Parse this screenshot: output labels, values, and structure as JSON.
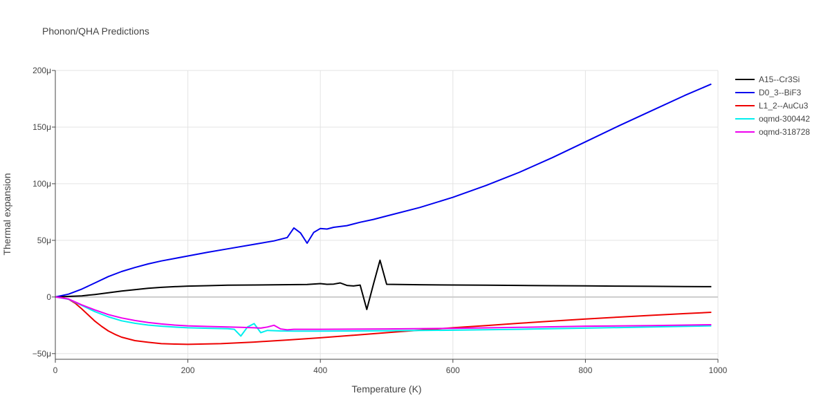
{
  "chart_data": {
    "type": "line",
    "title": "Phonon/QHA Predictions",
    "xlabel": "Temperature (K)",
    "ylabel": "Thermal expansion",
    "xlim": [
      0,
      1000
    ],
    "ylim": [
      -5.5e-05,
      0.0002
    ],
    "x_ticks": [
      0,
      200,
      400,
      600,
      800,
      1000
    ],
    "x_tick_labels": [
      "0",
      "200",
      "400",
      "600",
      "800",
      "1000"
    ],
    "y_ticks": [
      -5e-05,
      0,
      5e-05,
      0.0001,
      0.00015,
      0.0002
    ],
    "y_tick_labels": [
      "−50μ",
      "0",
      "50μ",
      "100μ",
      "150μ",
      "200μ"
    ],
    "grid": true,
    "legend_position": "top-right",
    "series": [
      {
        "name": "A15--Cr3Si",
        "color": "#000000",
        "x": [
          0,
          20,
          40,
          60,
          80,
          100,
          120,
          140,
          160,
          180,
          200,
          230,
          260,
          300,
          340,
          380,
          400,
          410,
          420,
          430,
          440,
          450,
          460,
          470,
          480,
          490,
          500,
          550,
          600,
          650,
          700,
          750,
          800,
          850,
          900,
          950,
          990
        ],
        "y": [
          0,
          5e-07,
          1e-06,
          2.2e-06,
          3.7e-06,
          5.2e-06,
          6.5e-06,
          7.7e-06,
          8.5e-06,
          9.1e-06,
          9.6e-06,
          1e-05,
          1.04e-05,
          1.06e-05,
          1.08e-05,
          1.1e-05,
          1.18e-05,
          1.12e-05,
          1.14e-05,
          1.24e-05,
          1.02e-05,
          9.7e-06,
          1.05e-05,
          -1.1e-05,
          1.1e-05,
          3.25e-05,
          1.12e-05,
          1.08e-05,
          1.06e-05,
          1.04e-05,
          1.02e-05,
          1e-05,
          9.8e-06,
          9.6e-06,
          9.4e-06,
          9.2e-06,
          9.1e-06
        ]
      },
      {
        "name": "D0_3--BiF3",
        "color": "#0000ee",
        "x": [
          0,
          20,
          40,
          60,
          80,
          100,
          120,
          140,
          160,
          180,
          200,
          230,
          260,
          300,
          330,
          350,
          360,
          370,
          380,
          390,
          400,
          410,
          420,
          440,
          460,
          480,
          500,
          550,
          600,
          650,
          700,
          750,
          800,
          850,
          900,
          950,
          990
        ],
        "y": [
          0,
          2.5e-06,
          7e-06,
          1.25e-05,
          1.8e-05,
          2.25e-05,
          2.6e-05,
          2.92e-05,
          3.18e-05,
          3.4e-05,
          3.62e-05,
          3.95e-05,
          4.25e-05,
          4.65e-05,
          4.95e-05,
          5.25e-05,
          6.1e-05,
          5.65e-05,
          4.75e-05,
          5.7e-05,
          6.05e-05,
          6e-05,
          6.15e-05,
          6.3e-05,
          6.6e-05,
          6.85e-05,
          7.15e-05,
          7.9e-05,
          8.8e-05,
          9.85e-05,
          0.00011,
          0.000123,
          0.000137,
          0.000151,
          0.0001645,
          0.000178,
          0.000188
        ]
      },
      {
        "name": "L1_2--AuCu3",
        "color": "#ee0000",
        "x": [
          0,
          10,
          20,
          30,
          40,
          50,
          60,
          70,
          80,
          90,
          100,
          120,
          140,
          160,
          180,
          200,
          250,
          300,
          350,
          400,
          450,
          500,
          550,
          600,
          650,
          700,
          750,
          800,
          850,
          900,
          950,
          990
        ],
        "y": [
          0,
          -5e-07,
          -2e-06,
          -5.5e-06,
          -1.05e-05,
          -1.6e-05,
          -2.15e-05,
          -2.6e-05,
          -3e-05,
          -3.3e-05,
          -3.55e-05,
          -3.85e-05,
          -4e-05,
          -4.12e-05,
          -4.16e-05,
          -4.18e-05,
          -4.12e-05,
          -3.98e-05,
          -3.8e-05,
          -3.6e-05,
          -3.38e-05,
          -3.15e-05,
          -2.93e-05,
          -2.72e-05,
          -2.52e-05,
          -2.32e-05,
          -2.13e-05,
          -1.95e-05,
          -1.78e-05,
          -1.62e-05,
          -1.47e-05,
          -1.35e-05
        ]
      },
      {
        "name": "oqmd-300442",
        "color": "#00eeee",
        "x": [
          0,
          20,
          40,
          60,
          80,
          100,
          120,
          140,
          160,
          180,
          200,
          230,
          260,
          270,
          280,
          290,
          300,
          310,
          320,
          340,
          360,
          380,
          400,
          500,
          600,
          700,
          800,
          900,
          990
        ],
        "y": [
          0,
          -2e-06,
          -7.5e-06,
          -1.3e-05,
          -1.75e-05,
          -2.1e-05,
          -2.32e-05,
          -2.48e-05,
          -2.58e-05,
          -2.66e-05,
          -2.72e-05,
          -2.76e-05,
          -2.8e-05,
          -2.85e-05,
          -3.45e-05,
          -2.65e-05,
          -2.35e-05,
          -3.15e-05,
          -2.95e-05,
          -3e-05,
          -3.02e-05,
          -3.02e-05,
          -3.02e-05,
          -2.98e-05,
          -2.93e-05,
          -2.85e-05,
          -2.75e-05,
          -2.65e-05,
          -2.55e-05
        ]
      },
      {
        "name": "oqmd-318728",
        "color": "#ee00ee",
        "x": [
          0,
          20,
          40,
          60,
          80,
          100,
          120,
          140,
          160,
          180,
          200,
          230,
          260,
          280,
          300,
          310,
          320,
          330,
          340,
          350,
          360,
          380,
          400,
          500,
          600,
          700,
          800,
          900,
          990
        ],
        "y": [
          0,
          -1.8e-06,
          -7e-06,
          -1.15e-05,
          -1.55e-05,
          -1.85e-05,
          -2.08e-05,
          -2.25e-05,
          -2.38e-05,
          -2.48e-05,
          -2.55e-05,
          -2.6e-05,
          -2.65e-05,
          -2.68e-05,
          -2.72e-05,
          -2.75e-05,
          -2.65e-05,
          -2.5e-05,
          -2.82e-05,
          -2.9e-05,
          -2.85e-05,
          -2.85e-05,
          -2.85e-05,
          -2.82e-05,
          -2.77e-05,
          -2.68e-05,
          -2.58e-05,
          -2.52e-05,
          -2.45e-05
        ]
      }
    ]
  }
}
